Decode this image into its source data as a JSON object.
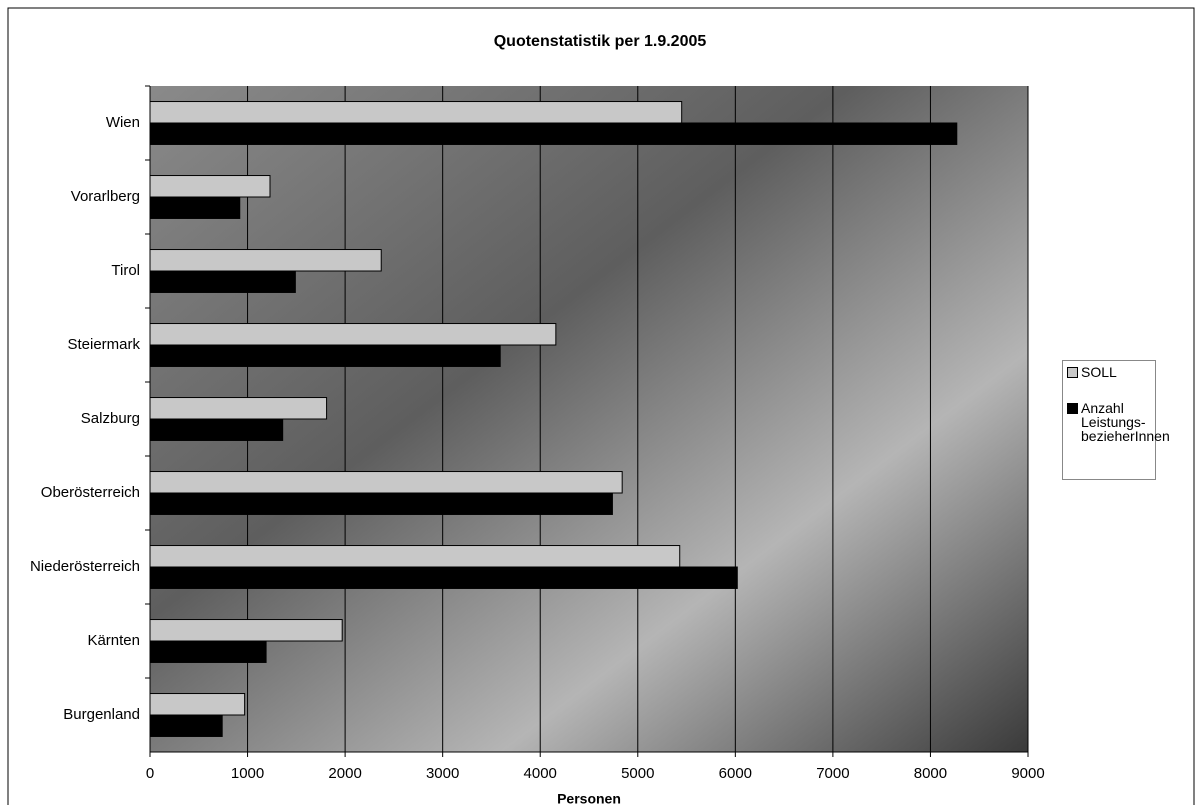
{
  "chart_data": {
    "type": "bar",
    "orientation": "horizontal",
    "title": "Quotenstatistik per 1.9.2005",
    "x_label": "Personen",
    "categories": [
      "Wien",
      "Vorarlberg",
      "Tirol",
      "Steiermark",
      "Salzburg",
      "Oberösterreich",
      "Niederösterreich",
      "Kärnten",
      "Burgenland"
    ],
    "series": [
      {
        "name": "SOLL",
        "color": "#c8c8c8",
        "values": [
          5450,
          1230,
          2370,
          4160,
          1810,
          4840,
          5430,
          1970,
          970
        ]
      },
      {
        "name": "Anzahl Leistungs-bezieherInnen",
        "color": "#000000",
        "values": [
          8270,
          920,
          1490,
          3590,
          1360,
          4740,
          6020,
          1190,
          740
        ]
      }
    ],
    "xlim": [
      0,
      9000
    ],
    "xticks": [
      0,
      1000,
      2000,
      3000,
      4000,
      5000,
      6000,
      7000,
      8000,
      9000
    ],
    "grid": true
  }
}
